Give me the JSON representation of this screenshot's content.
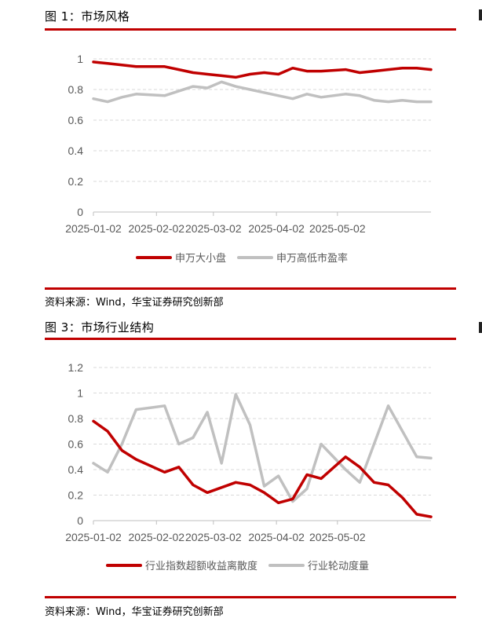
{
  "figures": [
    {
      "title": "图 1：市场风格",
      "source": "资料来源：Wind，华宝证券研究创新部",
      "chart_data": {
        "type": "line",
        "x_dates": [
          "2025-01-02",
          "2025-01-09",
          "2025-01-16",
          "2025-01-23",
          "2025-02-06",
          "2025-02-13",
          "2025-02-20",
          "2025-02-27",
          "2025-03-06",
          "2025-03-13",
          "2025-03-20",
          "2025-03-27",
          "2025-04-03",
          "2025-04-10",
          "2025-04-17",
          "2025-04-24",
          "2025-05-06",
          "2025-05-13",
          "2025-05-20",
          "2025-05-27",
          "2025-06-03",
          "2025-06-10",
          "2025-06-17"
        ],
        "xtick_labels": [
          "2025-01-02",
          "2025-02-02",
          "2025-03-02",
          "2025-04-02",
          "2025-05-02"
        ],
        "ylim": [
          0,
          1
        ],
        "yticks": [
          "0",
          "0.2",
          "0.4",
          "0.6",
          "0.8",
          "1"
        ],
        "legend_position": "bottom",
        "series": [
          {
            "name": "申万大小盘",
            "color": "#c00000",
            "values": [
              0.98,
              0.97,
              0.96,
              0.95,
              0.95,
              0.93,
              0.91,
              0.9,
              0.89,
              0.88,
              0.9,
              0.91,
              0.9,
              0.94,
              0.92,
              0.92,
              0.93,
              0.91,
              0.92,
              0.93,
              0.94,
              0.94,
              0.93
            ]
          },
          {
            "name": "申万高低市盈率",
            "color": "#c0c0c0",
            "values": [
              0.74,
              0.72,
              0.75,
              0.77,
              0.76,
              0.79,
              0.82,
              0.81,
              0.85,
              0.82,
              0.8,
              0.78,
              0.76,
              0.74,
              0.77,
              0.75,
              0.77,
              0.76,
              0.73,
              0.72,
              0.73,
              0.72,
              0.72
            ]
          }
        ]
      }
    },
    {
      "title": "图 3：市场行业结构",
      "source": "资料来源：Wind，华宝证券研究创新部",
      "chart_data": {
        "type": "line",
        "x_dates": [
          "2025-01-02",
          "2025-01-09",
          "2025-01-16",
          "2025-01-23",
          "2025-02-06",
          "2025-02-13",
          "2025-02-20",
          "2025-02-27",
          "2025-03-06",
          "2025-03-13",
          "2025-03-20",
          "2025-03-27",
          "2025-04-03",
          "2025-04-10",
          "2025-04-17",
          "2025-04-24",
          "2025-05-06",
          "2025-05-13",
          "2025-05-20",
          "2025-05-27",
          "2025-06-03",
          "2025-06-10",
          "2025-06-17"
        ],
        "xtick_labels": [
          "2025-01-02",
          "2025-02-02",
          "2025-03-02",
          "2025-04-02",
          "2025-05-02"
        ],
        "ylim": [
          0,
          1.2
        ],
        "yticks": [
          "0",
          "0.2",
          "0.4",
          "0.6",
          "0.8",
          "1",
          "1.2"
        ],
        "legend_position": "bottom",
        "series": [
          {
            "name": "行业指数超额收益离散度",
            "color": "#c00000",
            "values": [
              0.78,
              0.7,
              0.55,
              0.48,
              0.38,
              0.42,
              0.28,
              0.22,
              0.26,
              0.3,
              0.28,
              0.22,
              0.14,
              0.17,
              0.36,
              0.33,
              0.5,
              0.42,
              0.3,
              0.28,
              0.18,
              0.05,
              0.03
            ]
          },
          {
            "name": "行业轮动度量",
            "color": "#c0c0c0",
            "values": [
              0.45,
              0.38,
              0.6,
              0.87,
              0.9,
              0.6,
              0.65,
              0.85,
              0.45,
              0.99,
              0.75,
              0.27,
              0.35,
              0.15,
              0.25,
              0.6,
              0.4,
              0.3,
              0.6,
              0.9,
              0.7,
              0.5,
              0.49
            ]
          }
        ]
      }
    }
  ]
}
